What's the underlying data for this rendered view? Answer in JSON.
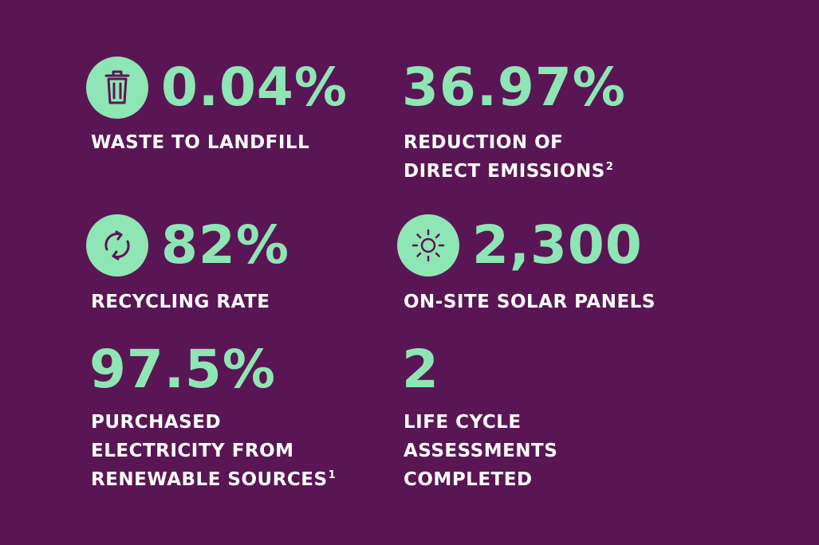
{
  "colors": {
    "background": "#5a1654",
    "accent": "#8ee6b4",
    "label": "#ffffff",
    "icon_stroke": "#5a1654"
  },
  "stats": [
    {
      "icon": "trash-can-icon",
      "value": "0.04%",
      "label_lines": [
        "WASTE TO LANDFILL"
      ],
      "footnote": ""
    },
    {
      "icon": "",
      "value": "36.97%",
      "label_lines": [
        "REDUCTION OF",
        "DIRECT EMISSIONS"
      ],
      "footnote": "2"
    },
    {
      "icon": "recycle-arrows-icon",
      "value": "82%",
      "label_lines": [
        "RECYCLING RATE"
      ],
      "footnote": ""
    },
    {
      "icon": "sun-icon",
      "value": "2,300",
      "label_lines": [
        "ON-SITE SOLAR PANELS"
      ],
      "footnote": ""
    },
    {
      "icon": "",
      "value": "97.5%",
      "label_lines": [
        "PURCHASED",
        "ELECTRICITY FROM",
        "RENEWABLE SOURCES"
      ],
      "footnote": "1"
    },
    {
      "icon": "",
      "value": "2",
      "label_lines": [
        "LIFE CYCLE",
        "ASSESSMENTS",
        "COMPLETED"
      ],
      "footnote": ""
    }
  ]
}
